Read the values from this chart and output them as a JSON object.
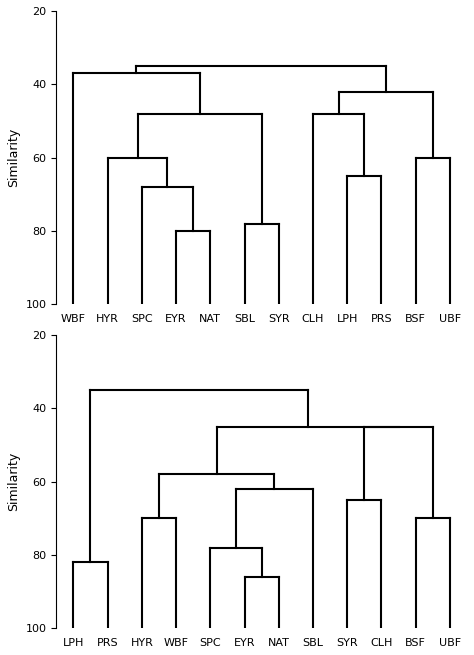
{
  "d1_labels": [
    "WBF",
    "HYR",
    "SPC",
    "EYR",
    "NAT",
    "SBL",
    "SYR",
    "CLH",
    "LPH",
    "PRS",
    "BSF",
    "UBF"
  ],
  "d2_labels": [
    "LPH",
    "PRS",
    "HYR",
    "WBF",
    "SPC",
    "EYR",
    "NAT",
    "SBL",
    "SYR",
    "CLH",
    "BSF",
    "UBF"
  ],
  "ylim": [
    100,
    20
  ],
  "yticks": [
    20,
    40,
    60,
    80,
    100
  ],
  "ylabel": "Similarity",
  "bg_color": "#ffffff",
  "line_color": "#000000",
  "line_width": 1.5,
  "tick_label_fontsize": 8,
  "axis_label_fontsize": 9
}
